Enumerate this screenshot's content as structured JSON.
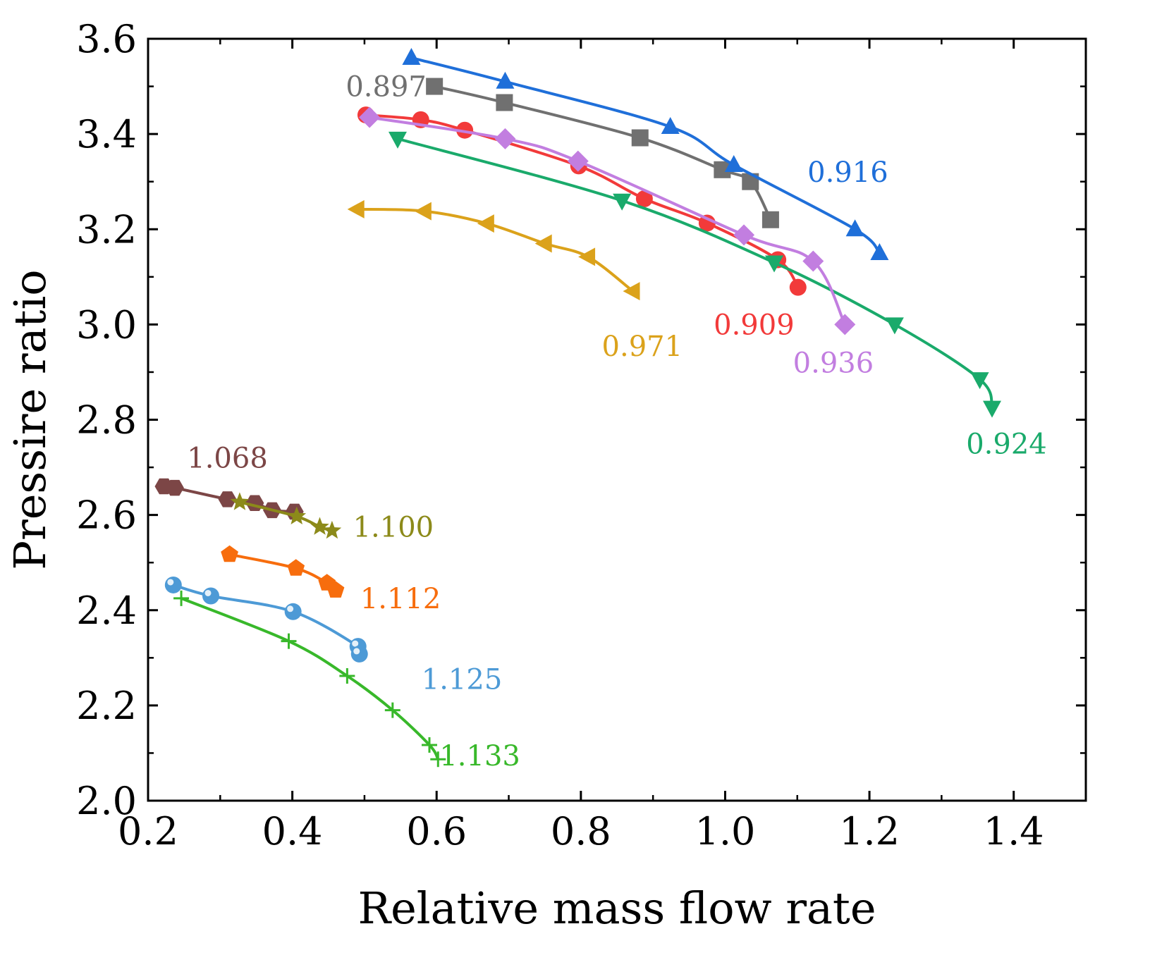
{
  "chart_data": {
    "type": "line",
    "title": "",
    "xlabel": "Relative mass flow rate",
    "ylabel": "Pressire ratio",
    "xlim": [
      0.2,
      1.5
    ],
    "ylim": [
      2.0,
      3.6
    ],
    "xticks": [
      "0.2",
      "0.4",
      "0.6",
      "0.8",
      "1.0",
      "1.2",
      "1.4"
    ],
    "yticks": [
      "2.0",
      "2.2",
      "2.4",
      "2.6",
      "2.8",
      "3.0",
      "3.2",
      "3.4",
      "3.6"
    ],
    "grid": false,
    "series": [
      {
        "name": "0.897",
        "color": "#707070",
        "marker": "square",
        "label_anchor": [
          0.53,
          3.5
        ],
        "x": [
          0.597,
          0.694,
          0.882,
          0.996,
          1.035,
          1.063
        ],
        "y": [
          3.5,
          3.466,
          3.392,
          3.325,
          3.3,
          3.22
        ]
      },
      {
        "name": "0.909",
        "color": "#f23a3a",
        "marker": "circle",
        "label_anchor": [
          1.04,
          3.0
        ],
        "x": [
          0.502,
          0.578,
          0.639,
          0.797,
          0.888,
          0.975,
          1.073,
          1.101
        ],
        "y": [
          3.44,
          3.43,
          3.408,
          3.333,
          3.264,
          3.213,
          3.136,
          3.078
        ]
      },
      {
        "name": "0.916",
        "color": "#1f6fd9",
        "marker": "triangle-up",
        "label_anchor": [
          1.17,
          3.32
        ],
        "x": [
          0.565,
          0.695,
          0.924,
          1.012,
          1.18,
          1.214
        ],
        "y": [
          3.56,
          3.51,
          3.415,
          3.335,
          3.2,
          3.15
        ]
      },
      {
        "name": "0.924",
        "color": "#1aaa6b",
        "marker": "triangle-down",
        "label_anchor": [
          1.39,
          2.75
        ],
        "x": [
          0.546,
          0.857,
          1.068,
          1.235,
          1.353,
          1.37
        ],
        "y": [
          3.39,
          3.26,
          3.13,
          3.0,
          2.885,
          2.825
        ]
      },
      {
        "name": "0.936",
        "color": "#c27ee0",
        "marker": "diamond",
        "label_anchor": [
          1.15,
          2.92
        ],
        "x": [
          0.507,
          0.695,
          0.796,
          1.026,
          1.122,
          1.166
        ],
        "y": [
          3.435,
          3.39,
          3.343,
          3.188,
          3.133,
          3.0
        ]
      },
      {
        "name": "0.971",
        "color": "#dba21b",
        "marker": "triangle-left",
        "label_anchor": [
          0.885,
          2.955
        ],
        "x": [
          0.49,
          0.583,
          0.67,
          0.75,
          0.81,
          0.872
        ],
        "y": [
          3.242,
          3.238,
          3.212,
          3.17,
          3.142,
          3.07
        ]
      },
      {
        "name": "1.068",
        "color": "#7c4646",
        "marker": "hexagon",
        "label_anchor": [
          0.31,
          2.72
        ],
        "x": [
          0.222,
          0.237,
          0.31,
          0.348,
          0.372,
          0.403
        ],
        "y": [
          2.66,
          2.657,
          2.633,
          2.625,
          2.61,
          2.607
        ]
      },
      {
        "name": "1.100",
        "color": "#8c8a1a",
        "marker": "star",
        "label_anchor": [
          0.54,
          2.575
        ],
        "x": [
          0.327,
          0.406,
          0.438,
          0.455
        ],
        "y": [
          2.627,
          2.597,
          2.575,
          2.567
        ]
      },
      {
        "name": "1.112",
        "color": "#f76d0d",
        "marker": "pentagon",
        "label_anchor": [
          0.55,
          2.425
        ],
        "x": [
          0.313,
          0.405,
          0.448,
          0.46
        ],
        "y": [
          2.517,
          2.488,
          2.457,
          2.442
        ]
      },
      {
        "name": "1.125",
        "color": "#4d9ad6",
        "marker": "sphere",
        "label_anchor": [
          0.635,
          2.255
        ],
        "x": [
          0.235,
          0.287,
          0.401,
          0.491,
          0.493
        ],
        "y": [
          2.453,
          2.43,
          2.397,
          2.324,
          2.308
        ]
      },
      {
        "name": "1.133",
        "color": "#38b82a",
        "marker": "plus",
        "label_anchor": [
          0.66,
          2.095
        ],
        "x": [
          0.246,
          0.395,
          0.476,
          0.539,
          0.59,
          0.602
        ],
        "y": [
          2.425,
          2.335,
          2.262,
          2.19,
          2.117,
          2.087
        ]
      }
    ]
  }
}
